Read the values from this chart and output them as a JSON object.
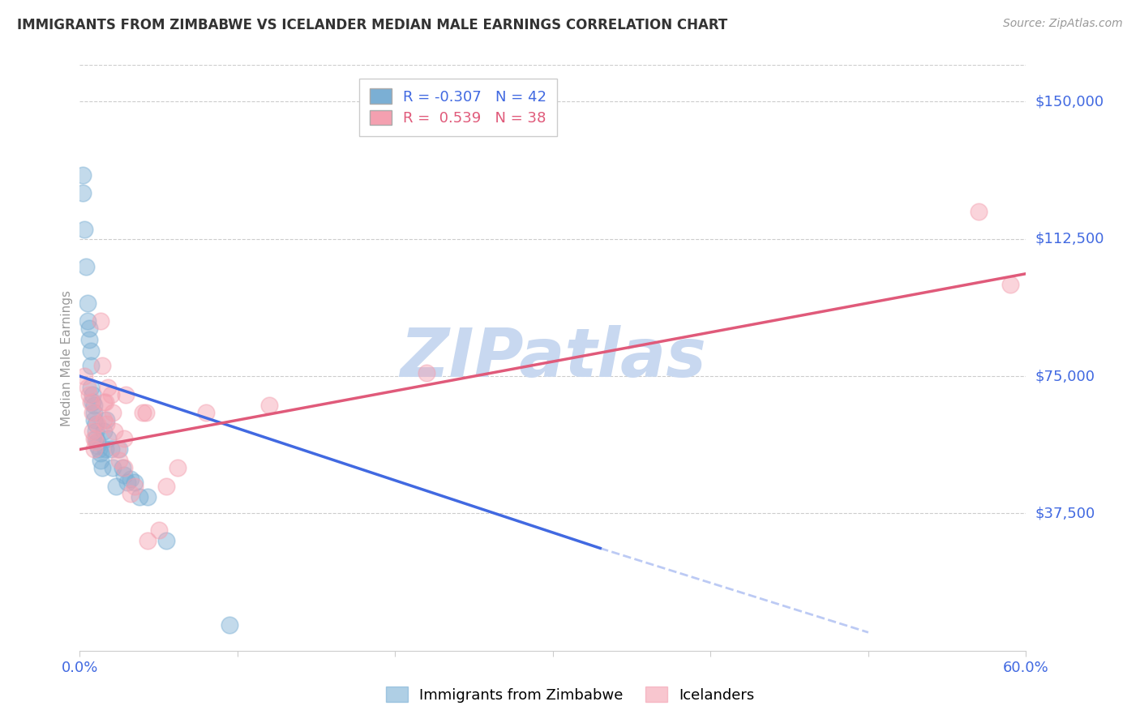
{
  "title": "IMMIGRANTS FROM ZIMBABWE VS ICELANDER MEDIAN MALE EARNINGS CORRELATION CHART",
  "source": "Source: ZipAtlas.com",
  "ylabel": "Median Male Earnings",
  "right_ytick_labels": [
    "$150,000",
    "$112,500",
    "$75,000",
    "$37,500"
  ],
  "right_ytick_values": [
    150000,
    112500,
    75000,
    37500
  ],
  "right_ytick_color": "#4169e1",
  "xlim": [
    0.0,
    0.6
  ],
  "ylim": [
    0,
    160000
  ],
  "bg_color": "#ffffff",
  "grid_color": "#cccccc",
  "blue_color": "#7bafd4",
  "pink_color": "#f4a0b0",
  "blue_line_color": "#4169e1",
  "pink_line_color": "#e05a7a",
  "blue_scatter_x": [
    0.002,
    0.002,
    0.003,
    0.004,
    0.005,
    0.005,
    0.006,
    0.006,
    0.007,
    0.007,
    0.007,
    0.008,
    0.008,
    0.009,
    0.009,
    0.009,
    0.01,
    0.01,
    0.01,
    0.011,
    0.011,
    0.012,
    0.013,
    0.013,
    0.014,
    0.015,
    0.016,
    0.017,
    0.018,
    0.02,
    0.021,
    0.023,
    0.025,
    0.027,
    0.028,
    0.03,
    0.032,
    0.035,
    0.038,
    0.043,
    0.055,
    0.095
  ],
  "blue_scatter_y": [
    130000,
    125000,
    115000,
    105000,
    95000,
    90000,
    88000,
    85000,
    82000,
    78000,
    72000,
    70000,
    68000,
    67000,
    65000,
    63000,
    62000,
    60000,
    58000,
    57000,
    56000,
    55000,
    54000,
    52000,
    50000,
    60000,
    55000,
    63000,
    58000,
    55000,
    50000,
    45000,
    55000,
    50000,
    48000,
    46000,
    47000,
    46000,
    42000,
    42000,
    30000,
    7000
  ],
  "pink_scatter_x": [
    0.003,
    0.005,
    0.006,
    0.007,
    0.008,
    0.008,
    0.009,
    0.009,
    0.01,
    0.011,
    0.013,
    0.014,
    0.015,
    0.015,
    0.016,
    0.017,
    0.018,
    0.02,
    0.021,
    0.022,
    0.024,
    0.025,
    0.028,
    0.028,
    0.029,
    0.032,
    0.035,
    0.04,
    0.042,
    0.043,
    0.05,
    0.055,
    0.062,
    0.08,
    0.12,
    0.22,
    0.57,
    0.59
  ],
  "pink_scatter_y": [
    75000,
    72000,
    70000,
    68000,
    65000,
    60000,
    58000,
    55000,
    57000,
    62000,
    90000,
    78000,
    63000,
    68000,
    68000,
    62000,
    72000,
    70000,
    65000,
    60000,
    55000,
    52000,
    58000,
    50000,
    70000,
    43000,
    45000,
    65000,
    65000,
    30000,
    33000,
    45000,
    50000,
    65000,
    67000,
    76000,
    120000,
    100000
  ],
  "blue_line_x0": 0.0,
  "blue_line_x1": 0.33,
  "blue_line_y0": 75000,
  "blue_line_y1": 28000,
  "pink_line_x0": 0.0,
  "pink_line_x1": 0.6,
  "pink_line_y0": 55000,
  "pink_line_y1": 103000,
  "dash_line_x0": 0.33,
  "dash_line_x1": 0.5,
  "dash_line_y0": 28000,
  "dash_line_y1": 5000,
  "watermark": "ZIPatlas",
  "watermark_color": "#c8d8f0",
  "legend_color1": "#7bafd4",
  "legend_color2": "#f4a0b0",
  "legend_text1": "R = -0.307   N = 42",
  "legend_text2": "R =  0.539   N = 38"
}
